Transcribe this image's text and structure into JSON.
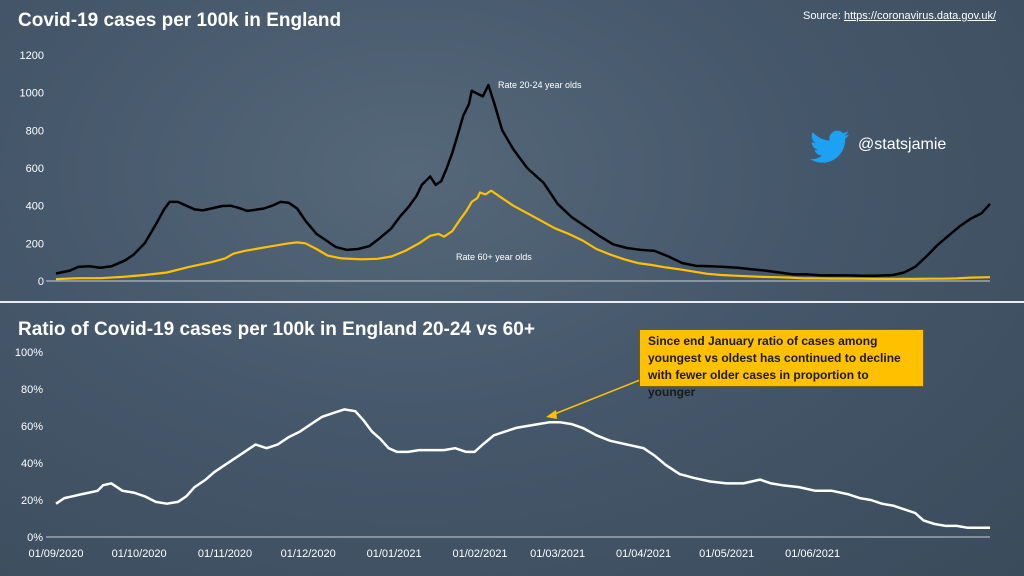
{
  "header": {
    "title": "Covid-19 cases per 100k in England",
    "source_prefix": "Source: ",
    "source_link": "https://coronavirus.data.gov.uk/",
    "handle": "@statsjamie"
  },
  "colors": {
    "young": "#000000",
    "old": "#ffc000",
    "ratio": "#ffffff",
    "callout": "#ffc000"
  },
  "chart_data": [
    {
      "type": "line",
      "title": "Covid-19 cases per 100k in England",
      "ylim": [
        0,
        1200
      ],
      "yticks": [
        "0",
        "200",
        "400",
        "600",
        "800",
        "1000",
        "1200"
      ],
      "x_range_days": [
        0,
        302
      ],
      "series": [
        {
          "name": "Rate 20-24 year olds",
          "label": "Rate 20-24 year olds",
          "points": [
            [
              0,
              40
            ],
            [
              5,
              55
            ],
            [
              8,
              75
            ],
            [
              12,
              78
            ],
            [
              16,
              70
            ],
            [
              20,
              78
            ],
            [
              25,
              110
            ],
            [
              28,
              140
            ],
            [
              32,
              200
            ],
            [
              36,
              300
            ],
            [
              39,
              380
            ],
            [
              41,
              420
            ],
            [
              44,
              420
            ],
            [
              47,
              400
            ],
            [
              50,
              380
            ],
            [
              53,
              375
            ],
            [
              56,
              385
            ],
            [
              60,
              398
            ],
            [
              63,
              400
            ],
            [
              66,
              388
            ],
            [
              69,
              372
            ],
            [
              72,
              378
            ],
            [
              75,
              385
            ],
            [
              78,
              400
            ],
            [
              81,
              420
            ],
            [
              84,
              415
            ],
            [
              87,
              385
            ],
            [
              90,
              320
            ],
            [
              94,
              250
            ],
            [
              98,
              210
            ],
            [
              101,
              180
            ],
            [
              105,
              165
            ],
            [
              109,
              170
            ],
            [
              113,
              185
            ],
            [
              117,
              230
            ],
            [
              121,
              280
            ],
            [
              124,
              340
            ],
            [
              127,
              390
            ],
            [
              130,
              450
            ],
            [
              132,
              510
            ],
            [
              135,
              555
            ],
            [
              137,
              510
            ],
            [
              139,
              530
            ],
            [
              141,
              600
            ],
            [
              143,
              680
            ],
            [
              145,
              780
            ],
            [
              147,
              880
            ],
            [
              149,
              940
            ],
            [
              150,
              1010
            ],
            [
              152,
              995
            ],
            [
              154,
              980
            ],
            [
              156,
              1040
            ],
            [
              158,
              950
            ],
            [
              161,
              800
            ],
            [
              165,
              700
            ],
            [
              170,
              600
            ],
            [
              176,
              520
            ],
            [
              181,
              410
            ],
            [
              186,
              340
            ],
            [
              191,
              290
            ],
            [
              196,
              240
            ],
            [
              201,
              195
            ],
            [
              206,
              175
            ],
            [
              211,
              165
            ],
            [
              216,
              160
            ],
            [
              221,
              130
            ],
            [
              226,
              95
            ],
            [
              231,
              80
            ],
            [
              236,
              78
            ],
            [
              241,
              75
            ],
            [
              246,
              70
            ],
            [
              251,
              62
            ],
            [
              256,
              55
            ],
            [
              261,
              45
            ],
            [
              266,
              35
            ],
            [
              271,
              35
            ],
            [
              276,
              30
            ],
            [
              281,
              30
            ],
            [
              286,
              30
            ],
            [
              291,
              28
            ],
            [
              295,
              28
            ],
            [
              299,
              30
            ],
            [
              302,
              32
            ],
            [
              306,
              45
            ],
            [
              310,
              75
            ],
            [
              314,
              130
            ],
            [
              318,
              190
            ],
            [
              322,
              240
            ],
            [
              326,
              290
            ],
            [
              330,
              330
            ],
            [
              334,
              360
            ],
            [
              337,
              410
            ]
          ]
        },
        {
          "name": "Rate 60+ year olds",
          "label": "Rate 60+ year olds",
          "points": [
            [
              0,
              10
            ],
            [
              8,
              15
            ],
            [
              16,
              15
            ],
            [
              24,
              22
            ],
            [
              32,
              32
            ],
            [
              40,
              45
            ],
            [
              48,
              75
            ],
            [
              56,
              100
            ],
            [
              61,
              120
            ],
            [
              64,
              145
            ],
            [
              68,
              160
            ],
            [
              72,
              170
            ],
            [
              76,
              180
            ],
            [
              80,
              190
            ],
            [
              84,
              200
            ],
            [
              87,
              205
            ],
            [
              90,
              200
            ],
            [
              94,
              170
            ],
            [
              98,
              135
            ],
            [
              103,
              120
            ],
            [
              110,
              115
            ],
            [
              116,
              118
            ],
            [
              121,
              130
            ],
            [
              126,
              160
            ],
            [
              131,
              200
            ],
            [
              135,
              240
            ],
            [
              138,
              250
            ],
            [
              140,
              235
            ],
            [
              143,
              265
            ],
            [
              146,
              330
            ],
            [
              148,
              370
            ],
            [
              150,
              420
            ],
            [
              152,
              440
            ],
            [
              153,
              470
            ],
            [
              155,
              460
            ],
            [
              157,
              480
            ],
            [
              160,
              450
            ],
            [
              165,
              400
            ],
            [
              170,
              360
            ],
            [
              175,
              320
            ],
            [
              180,
              280
            ],
            [
              185,
              250
            ],
            [
              190,
              215
            ],
            [
              195,
              170
            ],
            [
              200,
              140
            ],
            [
              205,
              115
            ],
            [
              210,
              95
            ],
            [
              215,
              85
            ],
            [
              220,
              72
            ],
            [
              225,
              62
            ],
            [
              230,
              50
            ],
            [
              235,
              38
            ],
            [
              240,
              32
            ],
            [
              245,
              28
            ],
            [
              250,
              25
            ],
            [
              255,
              22
            ],
            [
              260,
              20
            ],
            [
              265,
              18
            ],
            [
              270,
              14
            ],
            [
              275,
              14
            ],
            [
              280,
              13
            ],
            [
              285,
              13
            ],
            [
              290,
              12
            ],
            [
              295,
              11
            ],
            [
              300,
              11
            ],
            [
              305,
              11
            ],
            [
              310,
              11
            ],
            [
              315,
              12
            ],
            [
              320,
              12
            ],
            [
              325,
              14
            ],
            [
              330,
              18
            ],
            [
              337,
              20
            ]
          ]
        }
      ]
    },
    {
      "type": "line",
      "title": "Ratio of Covid-19 cases per 100k in England 20-24 vs 60+",
      "ylim": [
        0,
        100
      ],
      "yticks": [
        "0%",
        "20%",
        "40%",
        "60%",
        "80%",
        "100%"
      ],
      "x_ticks": [
        "01/09/2020",
        "01/10/2020",
        "01/11/2020",
        "01/12/2020",
        "01/01/2021",
        "01/02/2021",
        "01/03/2021",
        "01/04/2021",
        "01/05/2021",
        "01/06/2021"
      ],
      "series": [
        {
          "name": "Ratio 20-24 vs 60+",
          "points": [
            [
              0,
              18
            ],
            [
              3,
              21
            ],
            [
              6,
              22
            ],
            [
              9,
              23
            ],
            [
              12,
              24
            ],
            [
              15,
              25
            ],
            [
              17,
              28
            ],
            [
              20,
              29
            ],
            [
              24,
              25
            ],
            [
              28,
              24
            ],
            [
              32,
              22
            ],
            [
              36,
              19
            ],
            [
              40,
              18
            ],
            [
              44,
              19
            ],
            [
              47,
              22
            ],
            [
              50,
              27
            ],
            [
              54,
              31
            ],
            [
              57,
              35
            ],
            [
              60,
              38
            ],
            [
              64,
              42
            ],
            [
              68,
              46
            ],
            [
              72,
              50
            ],
            [
              76,
              48
            ],
            [
              80,
              50
            ],
            [
              84,
              54
            ],
            [
              88,
              57
            ],
            [
              92,
              61
            ],
            [
              96,
              65
            ],
            [
              100,
              67
            ],
            [
              104,
              69
            ],
            [
              108,
              68
            ],
            [
              111,
              63
            ],
            [
              114,
              57
            ],
            [
              117,
              53
            ],
            [
              120,
              48
            ],
            [
              123,
              46
            ],
            [
              127,
              46
            ],
            [
              131,
              47
            ],
            [
              136,
              47
            ],
            [
              140,
              47
            ],
            [
              144,
              48
            ],
            [
              148,
              46
            ],
            [
              151,
              46
            ],
            [
              154,
              50
            ],
            [
              158,
              55
            ],
            [
              162,
              57
            ],
            [
              166,
              59
            ],
            [
              170,
              60
            ],
            [
              174,
              61
            ],
            [
              178,
              62
            ],
            [
              182,
              62
            ],
            [
              186,
              61
            ],
            [
              190,
              59
            ],
            [
              195,
              55
            ],
            [
              200,
              52
            ],
            [
              206,
              50
            ],
            [
              212,
              48
            ],
            [
              216,
              44
            ],
            [
              220,
              39
            ],
            [
              225,
              34
            ],
            [
              230,
              32
            ],
            [
              236,
              30
            ],
            [
              242,
              29
            ],
            [
              248,
              29
            ],
            [
              254,
              31
            ],
            [
              258,
              29
            ],
            [
              262,
              28
            ],
            [
              268,
              27
            ],
            [
              274,
              25
            ],
            [
              280,
              25
            ],
            [
              286,
              23
            ],
            [
              290,
              21
            ],
            [
              294,
              20
            ],
            [
              298,
              18
            ],
            [
              302,
              17
            ],
            [
              306,
              15
            ],
            [
              310,
              13
            ],
            [
              313,
              9
            ],
            [
              317,
              7
            ],
            [
              321,
              6
            ],
            [
              325,
              6
            ],
            [
              329,
              5
            ],
            [
              333,
              5
            ],
            [
              337,
              5
            ]
          ]
        }
      ],
      "annotation": "Since end January ratio of cases among youngest vs oldest has continued to decline with fewer older cases in proportion to younger"
    }
  ]
}
